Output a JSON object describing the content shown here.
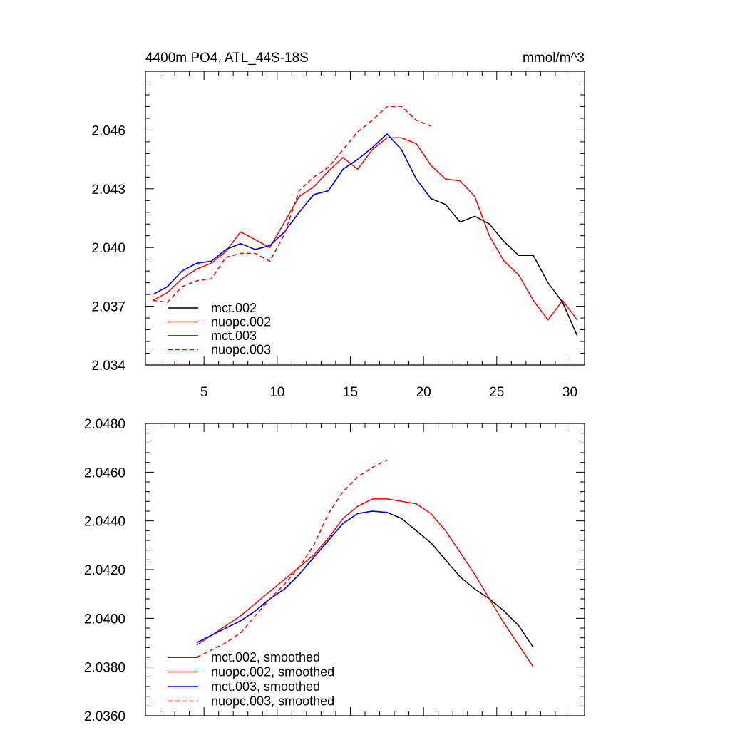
{
  "chart_data": [
    {
      "type": "line",
      "title": "4400m PO4, ATL_44S-18S",
      "units": "mmol/m^3",
      "xlim": [
        1,
        31
      ],
      "ylim": [
        2.034,
        2.049
      ],
      "x_major_ticks": [
        5,
        10,
        15,
        20,
        25,
        30
      ],
      "y_major_ticks": [
        2.034,
        2.037,
        2.04,
        2.043,
        2.046
      ],
      "x_tick_labels": [
        "5",
        "10",
        "15",
        "20",
        "25",
        "30"
      ],
      "y_tick_labels": [
        "2.034",
        "2.037",
        "2.040",
        "2.043",
        "2.046"
      ],
      "legend_position": "bottom-left",
      "series": [
        {
          "name": "mct.002",
          "color": "#000000",
          "dash": "solid",
          "x": [
            1.5,
            2.5,
            3.5,
            4.5,
            5.5,
            6.5,
            7.5,
            8.5,
            9.5,
            10.5,
            11.5,
            12.5,
            13.5,
            14.5,
            15.5,
            16.5,
            17.5,
            18.5,
            19.5,
            20.5,
            21.5,
            22.5,
            23.5,
            24.5,
            25.5,
            26.5,
            27.5,
            28.5,
            29.5,
            30.5
          ],
          "y": [
            2.0376,
            2.038,
            2.0388,
            2.0392,
            2.0393,
            2.0399,
            2.0402,
            2.0399,
            2.0401,
            2.0408,
            2.0418,
            2.0427,
            2.0429,
            2.044,
            2.0445,
            2.0451,
            2.0458,
            2.045,
            2.0435,
            2.0425,
            2.0422,
            2.0413,
            2.0416,
            2.0412,
            2.0403,
            2.0396,
            2.0396,
            2.0382,
            2.0372,
            2.0355
          ]
        },
        {
          "name": "nuopc.002",
          "color": "#ff0000",
          "dash": "solid",
          "x": [
            1.5,
            2.5,
            3.5,
            4.5,
            5.5,
            6.5,
            7.5,
            8.5,
            9.5,
            10.5,
            11.5,
            12.5,
            13.5,
            14.5,
            15.5,
            16.5,
            17.5,
            18.5,
            19.5,
            20.5,
            21.5,
            22.5,
            23.5,
            24.5,
            25.5,
            26.5,
            27.5,
            28.5,
            29.5,
            30.5
          ],
          "y": [
            2.0373,
            2.0377,
            2.0384,
            2.0389,
            2.0392,
            2.0398,
            2.0408,
            2.0404,
            2.04,
            2.0413,
            2.0426,
            2.0431,
            2.0439,
            2.0446,
            2.044,
            2.045,
            2.0456,
            2.0456,
            2.0453,
            2.0442,
            2.0435,
            2.0434,
            2.0426,
            2.0406,
            2.0393,
            2.0386,
            2.0373,
            2.0363,
            2.0373,
            2.0363
          ]
        },
        {
          "name": "mct.003",
          "color": "#0000ff",
          "dash": "solid",
          "x": [
            1.5,
            2.5,
            3.5,
            4.5,
            5.5,
            6.5,
            7.5,
            8.5,
            9.5,
            10.5,
            11.5,
            12.5,
            13.5,
            14.5,
            15.5,
            16.5,
            17.5,
            18.5,
            19.5,
            20.5
          ],
          "y": [
            2.0376,
            2.038,
            2.0388,
            2.0392,
            2.0393,
            2.0399,
            2.0402,
            2.0399,
            2.0401,
            2.0408,
            2.0418,
            2.0427,
            2.0429,
            2.044,
            2.0445,
            2.0451,
            2.0458,
            2.045,
            2.0435,
            2.0425
          ]
        },
        {
          "name": "nuopc.003",
          "color": "#ff0000",
          "dash": "dashed",
          "x": [
            1.5,
            2.5,
            3.5,
            4.5,
            5.5,
            6.5,
            7.5,
            8.5,
            9.5,
            10.5,
            11.5,
            12.5,
            13.5,
            14.5,
            15.5,
            16.5,
            17.5,
            18.5,
            19.5,
            20.5
          ],
          "y": [
            2.0373,
            2.0372,
            2.038,
            2.0383,
            2.0384,
            2.0395,
            2.0397,
            2.0397,
            2.0393,
            2.0407,
            2.0429,
            2.0436,
            2.0441,
            2.045,
            2.0459,
            2.0465,
            2.0472,
            2.0472,
            2.0465,
            2.0462
          ]
        }
      ]
    },
    {
      "type": "line",
      "title": "",
      "xlim": [
        1,
        31
      ],
      "ylim": [
        2.036,
        2.048
      ],
      "x_major_ticks": [
        5,
        10,
        15,
        20,
        25,
        30
      ],
      "y_major_ticks": [
        2.036,
        2.038,
        2.04,
        2.042,
        2.044,
        2.046,
        2.048
      ],
      "y_tick_labels": [
        "2.0360",
        "2.0380",
        "2.0400",
        "2.0420",
        "2.0440",
        "2.0460",
        "2.0480"
      ],
      "legend_position": "bottom-left",
      "series": [
        {
          "name": "mct.002, smoothed",
          "color": "#000000",
          "dash": "solid",
          "x": [
            4.5,
            5.5,
            6.5,
            7.5,
            8.5,
            9.5,
            10.5,
            11.5,
            12.5,
            13.5,
            14.5,
            15.5,
            16.5,
            17.5,
            18.5,
            19.5,
            20.5,
            21.5,
            22.5,
            23.5,
            24.5,
            25.5,
            26.5,
            27.5
          ],
          "y": [
            2.039,
            2.0393,
            2.0396,
            2.0399,
            2.0403,
            2.0408,
            2.0412,
            2.0418,
            2.0425,
            2.0432,
            2.0439,
            2.0443,
            2.0444,
            2.04435,
            2.0441,
            2.0436,
            2.0431,
            2.0424,
            2.0417,
            2.0412,
            2.0408,
            2.0403,
            2.0397,
            2.0388
          ]
        },
        {
          "name": "nuopc.002, smoothed",
          "color": "#ff0000",
          "dash": "solid",
          "x": [
            4.5,
            5.5,
            6.5,
            7.5,
            8.5,
            9.5,
            10.5,
            11.5,
            12.5,
            13.5,
            14.5,
            15.5,
            16.5,
            17.5,
            18.5,
            19.5,
            20.5,
            21.5,
            22.5,
            23.5,
            24.5,
            25.5,
            26.5,
            27.5
          ],
          "y": [
            2.0389,
            2.0393,
            2.0397,
            2.0401,
            2.0406,
            2.0411,
            2.0416,
            2.0421,
            2.0426,
            2.0433,
            2.0441,
            2.0446,
            2.0449,
            2.0449,
            2.0448,
            2.0447,
            2.0443,
            2.0436,
            2.0427,
            2.0418,
            2.0408,
            2.0398,
            2.0389,
            2.038
          ]
        },
        {
          "name": "mct.003, smoothed",
          "color": "#0000ff",
          "dash": "solid",
          "x": [
            4.5,
            5.5,
            6.5,
            7.5,
            8.5,
            9.5,
            10.5,
            11.5,
            12.5,
            13.5,
            14.5,
            15.5,
            16.5,
            17.5
          ],
          "y": [
            2.039,
            2.0393,
            2.0396,
            2.0399,
            2.0403,
            2.0408,
            2.0412,
            2.0418,
            2.0425,
            2.0432,
            2.0439,
            2.0443,
            2.0444,
            2.04435
          ]
        },
        {
          "name": "nuopc.003, smoothed",
          "color": "#ff0000",
          "dash": "dashed",
          "x": [
            4.5,
            5.5,
            6.5,
            7.5,
            8.5,
            9.5,
            10.5,
            11.5,
            12.5,
            13.5,
            14.5,
            15.5,
            16.5,
            17.5
          ],
          "y": [
            2.0384,
            2.0387,
            2.039,
            2.0394,
            2.0401,
            2.0408,
            2.0414,
            2.0421,
            2.043,
            2.0443,
            2.0452,
            2.0458,
            2.0462,
            2.0465
          ]
        }
      ]
    }
  ]
}
